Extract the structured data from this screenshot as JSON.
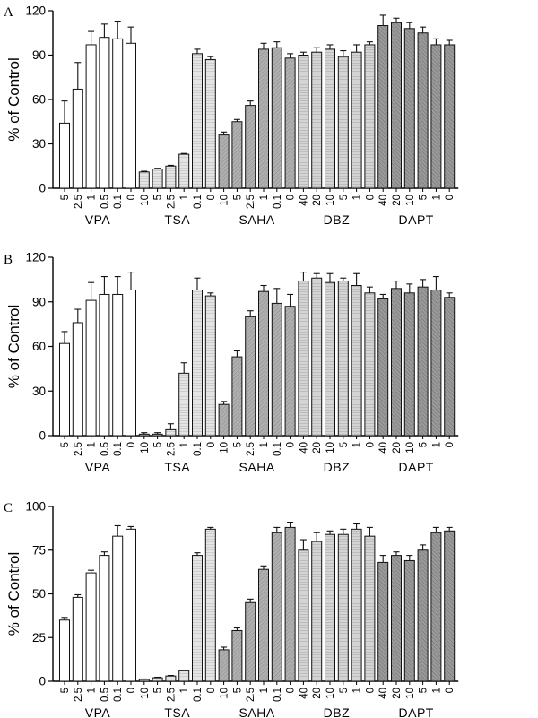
{
  "figure": {
    "panels": [
      "A",
      "B",
      "C"
    ]
  },
  "chart_data": [
    {
      "type": "bar",
      "panel": "A",
      "ylabel": "% of Control",
      "ylim": [
        0,
        120
      ],
      "yticks": [
        "0",
        "30",
        "60",
        "90",
        "120"
      ],
      "groups": [
        {
          "name": "VPA",
          "fill": "white",
          "categories": [
            "5",
            "2.5",
            "1",
            "0.5",
            "0.1",
            "0"
          ],
          "values": [
            44,
            67,
            97,
            102,
            101,
            98
          ],
          "errors": [
            15,
            18,
            9,
            9,
            12,
            11
          ]
        },
        {
          "name": "TSA",
          "fill": "light",
          "categories": [
            "10",
            "5",
            "2.5",
            "1",
            "0.1",
            "0"
          ],
          "values": [
            11,
            13,
            15,
            23,
            91,
            87
          ],
          "errors": [
            0.5,
            0.5,
            0.5,
            0.5,
            3,
            2
          ]
        },
        {
          "name": "SAHA",
          "fill": "dark",
          "categories": [
            "10",
            "5",
            "2.5",
            "1",
            "0.1",
            "0"
          ],
          "values": [
            36,
            45,
            56,
            94,
            95,
            88
          ],
          "errors": [
            2,
            1.5,
            3,
            4,
            4,
            3
          ]
        },
        {
          "name": "DBZ",
          "fill": "medium",
          "categories": [
            "40",
            "20",
            "10",
            "5",
            "1",
            "0"
          ],
          "values": [
            90,
            92,
            94,
            89,
            92,
            97
          ],
          "errors": [
            2,
            3,
            3,
            4,
            5,
            2
          ]
        },
        {
          "name": "DAPT",
          "fill": "darkest",
          "categories": [
            "40",
            "20",
            "10",
            "5",
            "1",
            "0"
          ],
          "values": [
            110,
            112,
            108,
            105,
            97,
            97
          ],
          "errors": [
            7,
            3,
            4,
            4,
            4,
            3
          ]
        }
      ]
    },
    {
      "type": "bar",
      "panel": "B",
      "ylabel": "% of Control",
      "ylim": [
        0,
        120
      ],
      "yticks": [
        "0",
        "30",
        "60",
        "90",
        "120"
      ],
      "groups": [
        {
          "name": "VPA",
          "fill": "white",
          "categories": [
            "5",
            "2.5",
            "1",
            "0.5",
            "0.1",
            "0"
          ],
          "values": [
            62,
            76,
            91,
            95,
            95,
            98
          ],
          "errors": [
            8,
            9,
            12,
            12,
            12,
            12
          ]
        },
        {
          "name": "TSA",
          "fill": "light",
          "categories": [
            "10",
            "5",
            "2.5",
            "1",
            "0.1",
            "0"
          ],
          "values": [
            1,
            1,
            4,
            42,
            98,
            94
          ],
          "errors": [
            1,
            1,
            4,
            7,
            8,
            2
          ]
        },
        {
          "name": "SAHA",
          "fill": "dark",
          "categories": [
            "10",
            "5",
            "2.5",
            "1",
            "0.1",
            "0"
          ],
          "values": [
            21,
            53,
            80,
            97,
            89,
            87
          ],
          "errors": [
            2,
            4,
            4,
            4,
            10,
            8
          ]
        },
        {
          "name": "DBZ",
          "fill": "medium",
          "categories": [
            "40",
            "20",
            "10",
            "5",
            "1",
            "0"
          ],
          "values": [
            104,
            106,
            103,
            104,
            101,
            96
          ],
          "errors": [
            6,
            3,
            6,
            2,
            8,
            4
          ]
        },
        {
          "name": "DAPT",
          "fill": "darkest",
          "categories": [
            "40",
            "20",
            "10",
            "5",
            "1",
            "0"
          ],
          "values": [
            92,
            99,
            96,
            100,
            98,
            93
          ],
          "errors": [
            3,
            5,
            6,
            5,
            9,
            3
          ]
        }
      ]
    },
    {
      "type": "bar",
      "panel": "C",
      "ylabel": "% of Control",
      "ylim": [
        0,
        100
      ],
      "yticks": [
        "0",
        "25",
        "50",
        "75",
        "100"
      ],
      "groups": [
        {
          "name": "VPA",
          "fill": "white",
          "categories": [
            "5",
            "2.5",
            "1",
            "0.5",
            "0.1",
            "0"
          ],
          "values": [
            35,
            48,
            62,
            72,
            83,
            87
          ],
          "errors": [
            1.5,
            1.5,
            1.5,
            2,
            6,
            1.5
          ]
        },
        {
          "name": "TSA",
          "fill": "light",
          "categories": [
            "10",
            "5",
            "2.5",
            "1",
            "0.1",
            "0"
          ],
          "values": [
            1,
            2,
            3,
            6,
            72,
            87
          ],
          "errors": [
            0.3,
            0.3,
            0.3,
            0.3,
            1.5,
            1
          ]
        },
        {
          "name": "SAHA",
          "fill": "dark",
          "categories": [
            "10",
            "5",
            "2.5",
            "1",
            "0.1",
            "0"
          ],
          "values": [
            18,
            29,
            45,
            64,
            85,
            88
          ],
          "errors": [
            1.5,
            1.5,
            2,
            2,
            3,
            3
          ]
        },
        {
          "name": "DBZ",
          "fill": "medium",
          "categories": [
            "40",
            "20",
            "10",
            "5",
            "1",
            "0"
          ],
          "values": [
            75,
            80,
            84,
            84,
            87,
            83
          ],
          "errors": [
            6,
            5,
            2,
            3,
            3,
            5
          ]
        },
        {
          "name": "DAPT",
          "fill": "darkest",
          "categories": [
            "40",
            "20",
            "10",
            "5",
            "1",
            "0"
          ],
          "values": [
            68,
            72,
            69,
            75,
            85,
            86
          ],
          "errors": [
            4,
            2,
            3,
            3,
            3,
            2
          ]
        }
      ]
    }
  ],
  "colors": {
    "white": "#ffffff",
    "light": "#e2e2e2",
    "medium": "#cfcfcf",
    "dark": "#a9a9a9",
    "darkest": "#929292",
    "stroke": "#111111"
  }
}
